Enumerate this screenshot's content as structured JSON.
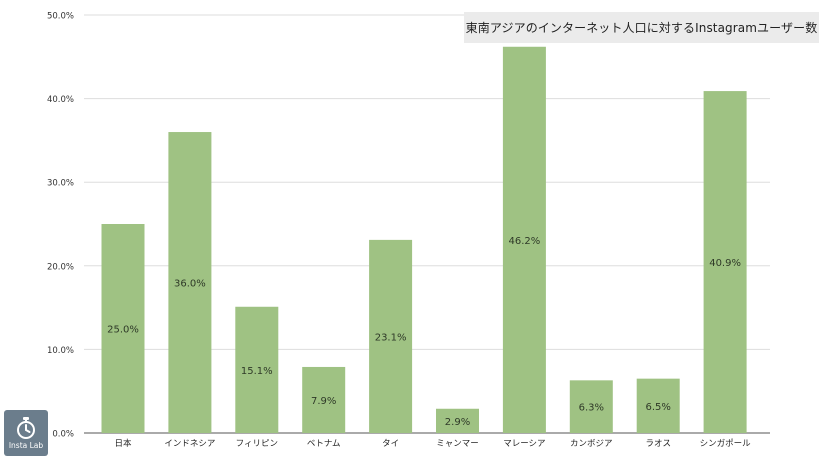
{
  "chart_data": {
    "type": "bar",
    "title": "東南アジアのインターネット人口に対するInstagramユーザー数",
    "categories": [
      "日本",
      "インドネシア",
      "フィリピン",
      "ベトナム",
      "タイ",
      "ミャンマー",
      "マレーシア",
      "カンボジア",
      "ラオス",
      "シンガポール"
    ],
    "values": [
      25.0,
      36.0,
      15.1,
      7.9,
      23.1,
      2.9,
      46.2,
      6.3,
      6.5,
      40.9
    ],
    "data_labels": [
      "25.0%",
      "36.0%",
      "15.1%",
      "7.9%",
      "23.1%",
      "2.9%",
      "46.2%",
      "6.3%",
      "6.5%",
      "40.9%"
    ],
    "y_ticks": [
      "0.0%",
      "10.0%",
      "20.0%",
      "30.0%",
      "40.0%",
      "50.0%"
    ],
    "ylim": [
      0,
      50
    ],
    "xlabel": "",
    "ylabel": "",
    "grid": true,
    "legend": "none",
    "bar_color": "#9fc283",
    "label_color": "#2f3a28"
  },
  "logo": {
    "text": "Insta Lab",
    "icon": "stopwatch-icon"
  }
}
